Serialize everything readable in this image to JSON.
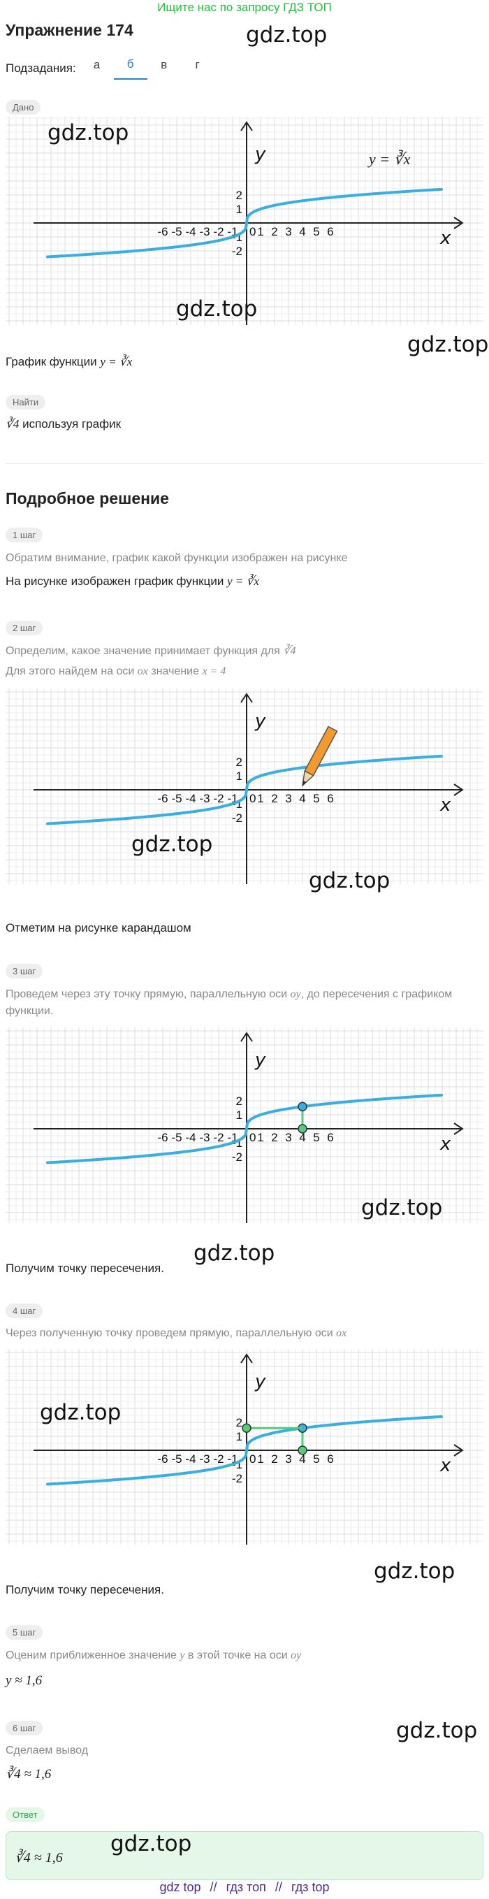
{
  "banner": "Ищите нас по запросу ГДЗ ТОП",
  "watermark": "gdz.top",
  "title": "Упражнение 174",
  "subtasks": {
    "label": "Подзадания:",
    "tabs": [
      "а",
      "б",
      "в",
      "г"
    ],
    "active_index": 1
  },
  "given": {
    "chip": "Дано",
    "curve_label": "y = ∛x",
    "function_text": "График функции",
    "function_formula": "y = ∛x"
  },
  "find": {
    "chip": "Найти",
    "formula": "∛4",
    "text": "используя график"
  },
  "solution_title": "Подробное решение",
  "graph": {
    "x_axis_label": "x",
    "y_axis_label": "y",
    "x_tick_labels": [
      "-6",
      "-5",
      "-4",
      "-3",
      "-2",
      "-1",
      "0",
      "1",
      "2",
      "3",
      "4",
      "5",
      "6"
    ],
    "y_tick_labels": [
      "2",
      "1",
      "-1",
      "-2"
    ],
    "curve_color": "#3aaee0",
    "helper_color": "#55cc77"
  },
  "steps": [
    {
      "chip": "1 шаг",
      "hint": "Обратим внимание, график какой функции изображен на рисунке",
      "text": "На рисунке изображен график функции",
      "formula": "y = ∛x"
    },
    {
      "chip": "2 шаг",
      "hint": "Определим, какое значение принимает функция для",
      "hint_formula": "∛4",
      "hint2": "Для этого найдем на оси",
      "hint2_axis": "ox",
      "hint2_mid": "значение",
      "hint2_value": "x = 4",
      "text": "Отметим на рисунке карандашом"
    },
    {
      "chip": "3 шаг",
      "hint_line1": "Проведем через эту точку прямую, параллельную оси",
      "hint_axis": "oy",
      "hint_line1_end": ", до пересечения с графиком",
      "hint_line2": "функции.",
      "text": "Получим точку пересечения."
    },
    {
      "chip": "4 шаг",
      "hint": "Через полученную точку проведем прямую, параллельную оси",
      "hint_axis": "ox",
      "text": "Получим точку пересечения."
    },
    {
      "chip": "5 шаг",
      "hint": "Оценим приближенное значение",
      "hint_var": "y",
      "hint_mid": "в этой точке на оси",
      "hint_axis": "oy",
      "result": "y ≈ 1,6"
    },
    {
      "chip": "6 шаг",
      "hint": "Сделаем вывод",
      "result": "∛4 ≈ 1,6"
    }
  ],
  "answer": {
    "chip": "Ответ",
    "formula": "∛4 ≈ 1,6"
  },
  "footer": [
    "gdz top",
    "//",
    "гдз топ",
    "//",
    "гдз top"
  ]
}
